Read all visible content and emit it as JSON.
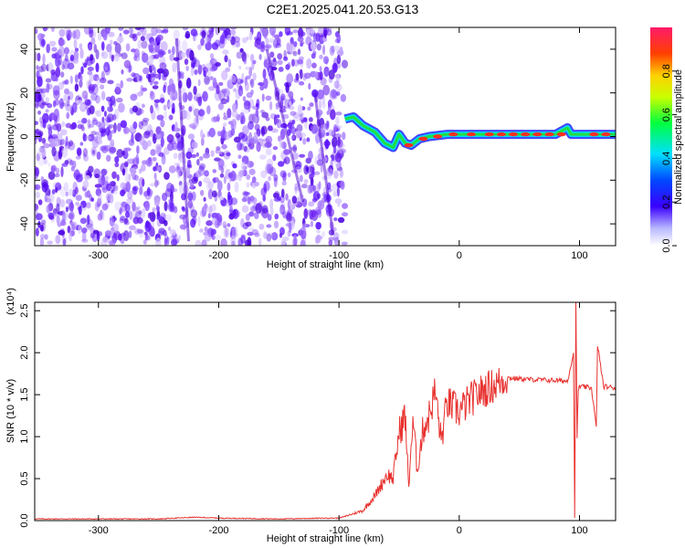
{
  "title": "C2E1.2025.041.20.53.G13",
  "chart_data": [
    {
      "type": "heatmap",
      "xlabel": "Height of straight line (km)",
      "ylabel": "Frequency (Hz)",
      "xlim": [
        -353,
        130
      ],
      "ylim": [
        -50,
        50
      ],
      "xticks": [
        -300,
        -200,
        -100,
        0,
        100
      ],
      "yticks": [
        -40,
        -20,
        0,
        20,
        40
      ],
      "colorbar": {
        "label": "Normalized spectral amplitude",
        "range": [
          0,
          1
        ],
        "ticks": [
          0.0,
          0.2,
          0.4,
          0.6,
          0.8
        ]
      },
      "noise_region_x": [
        -353,
        -95
      ],
      "signal_trace": [
        {
          "x": -95,
          "y": 8
        },
        {
          "x": -88,
          "y": 9
        },
        {
          "x": -80,
          "y": 5
        },
        {
          "x": -70,
          "y": 2
        },
        {
          "x": -62,
          "y": -3
        },
        {
          "x": -55,
          "y": -5
        },
        {
          "x": -50,
          "y": 1
        },
        {
          "x": -45,
          "y": -3
        },
        {
          "x": -40,
          "y": -4
        },
        {
          "x": -33,
          "y": -1
        },
        {
          "x": -25,
          "y": 0
        },
        {
          "x": -10,
          "y": 1
        },
        {
          "x": 10,
          "y": 1
        },
        {
          "x": 40,
          "y": 1
        },
        {
          "x": 80,
          "y": 1
        },
        {
          "x": 90,
          "y": 4
        },
        {
          "x": 93,
          "y": 1
        },
        {
          "x": 110,
          "y": 1
        },
        {
          "x": 130,
          "y": 1
        }
      ]
    },
    {
      "type": "line",
      "xlabel": "Height of straight line (km)",
      "ylabel": "SNR (10 * v/v)",
      "y_multiplier": "(x10⁴)",
      "xlim": [
        -353,
        130
      ],
      "ylim": [
        0,
        2.6
      ],
      "xticks": [
        -300,
        -200,
        -100,
        0,
        100
      ],
      "yticks": [
        0.0,
        0.5,
        1.0,
        1.5,
        2.0,
        2.5
      ],
      "series": [
        {
          "color": "#e8322f",
          "x": [
            -353,
            -300,
            -250,
            -220,
            -200,
            -150,
            -110,
            -100,
            -95,
            -80,
            -70,
            -60,
            -55,
            -50,
            -45,
            -42,
            -40,
            -38,
            -35,
            -30,
            -25,
            -20,
            -15,
            -10,
            -5,
            0,
            10,
            20,
            30,
            40,
            60,
            80,
            90,
            95,
            96,
            97,
            98,
            99,
            100,
            110,
            114,
            115,
            120,
            130
          ],
          "y": [
            0.02,
            0.02,
            0.02,
            0.04,
            0.03,
            0.02,
            0.03,
            0.03,
            0.05,
            0.12,
            0.3,
            0.55,
            0.5,
            1.05,
            1.25,
            0.4,
            0.9,
            1.15,
            0.6,
            1.1,
            1.25,
            1.55,
            0.95,
            1.4,
            1.35,
            1.3,
            1.45,
            1.55,
            1.62,
            1.7,
            1.68,
            1.67,
            1.66,
            2.0,
            0.05,
            2.6,
            1.0,
            1.55,
            1.6,
            1.58,
            1.1,
            2.1,
            1.6,
            1.58
          ]
        }
      ]
    }
  ]
}
